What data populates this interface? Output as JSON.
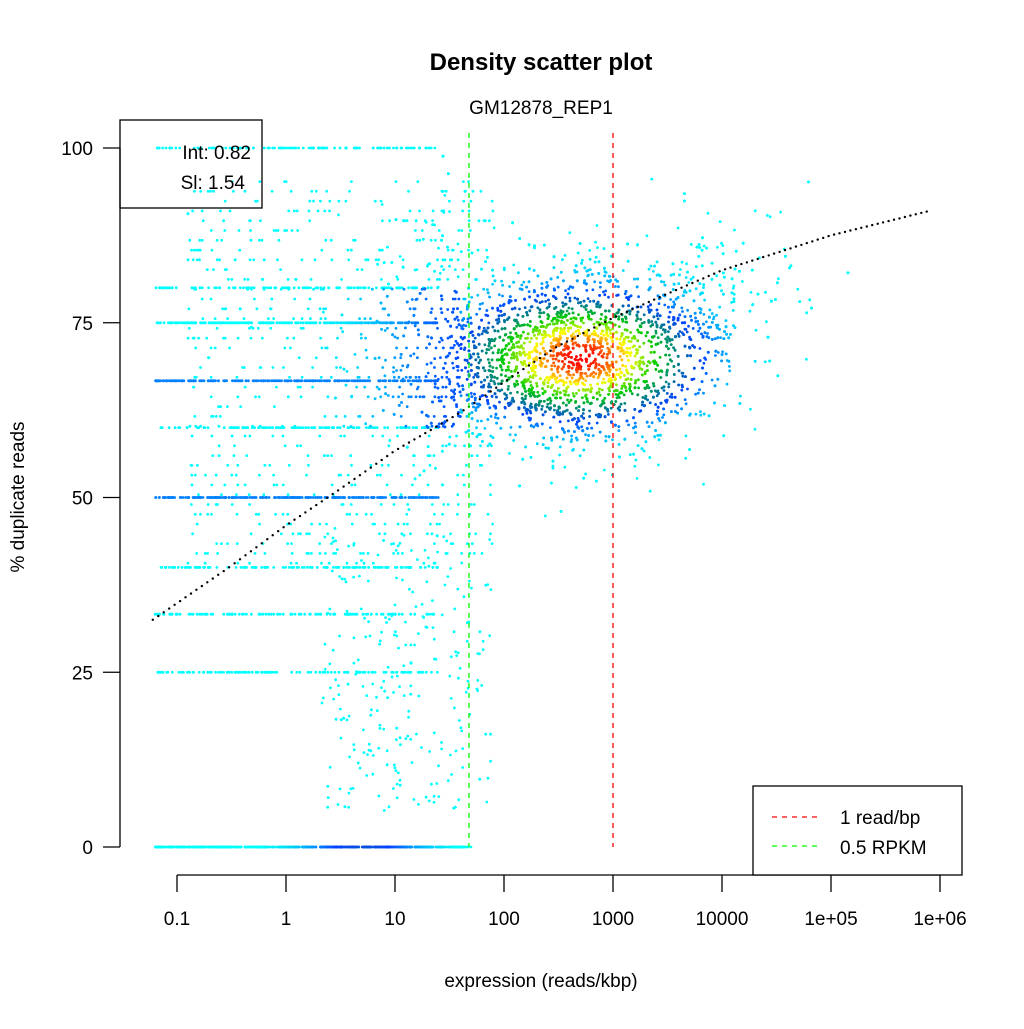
{
  "chart_data": {
    "type": "scatter",
    "title": "Density scatter plot",
    "subtitle": "GM12878_REP1",
    "xlabel": "expression (reads/kbp)",
    "ylabel": "% duplicate reads",
    "x_scale": "log",
    "xlim": [
      0.06,
      1000000
    ],
    "ylim": [
      0,
      100
    ],
    "x_ticks": [
      0.1,
      1,
      10,
      100,
      1000,
      10000,
      100000,
      1000000
    ],
    "x_tick_labels": [
      "0.1",
      "1",
      "10",
      "100",
      "1000",
      "10000",
      "1e+05",
      "1e+06"
    ],
    "y_ticks": [
      0,
      25,
      50,
      75,
      100
    ],
    "y_tick_labels": [
      "0",
      "25",
      "50",
      "75",
      "100"
    ],
    "grid": false,
    "annotation": {
      "lines": [
        "Int: 0.82",
        "Sl: 1.54"
      ],
      "placement": "top-left"
    },
    "vlines": [
      {
        "x": 1000,
        "color": "#ff0000",
        "label": "1 read/bp",
        "style": "dashed"
      },
      {
        "x": 47.7,
        "color": "#00ff00",
        "label": "0.5 RPKM",
        "style": "dashed"
      }
    ],
    "legend": {
      "placement": "bottom-right",
      "entries": [
        "1 read/bp",
        "0.5 RPKM"
      ]
    },
    "fit_line": {
      "color": "#000000",
      "style": "dotted",
      "points": [
        [
          0.06,
          32.5
        ],
        [
          0.3,
          40
        ],
        [
          1,
          46
        ],
        [
          3,
          51
        ],
        [
          10,
          56.7
        ],
        [
          30,
          61
        ],
        [
          48,
          63
        ],
        [
          100,
          66.5
        ],
        [
          300,
          71.5
        ],
        [
          1000,
          75.7
        ],
        [
          3000,
          79
        ],
        [
          10000,
          82.5
        ],
        [
          100000,
          87.5
        ],
        [
          800000,
          91
        ]
      ]
    },
    "density": {
      "palette": [
        "#00ffff",
        "#0040ff",
        "#00cc00",
        "#ffff00",
        "#ff0000"
      ],
      "peak": {
        "x": 500,
        "y": 70
      },
      "discrete_rows_y": [
        0,
        25,
        33.3,
        40,
        50,
        60,
        66.7,
        75,
        80,
        100
      ]
    }
  }
}
